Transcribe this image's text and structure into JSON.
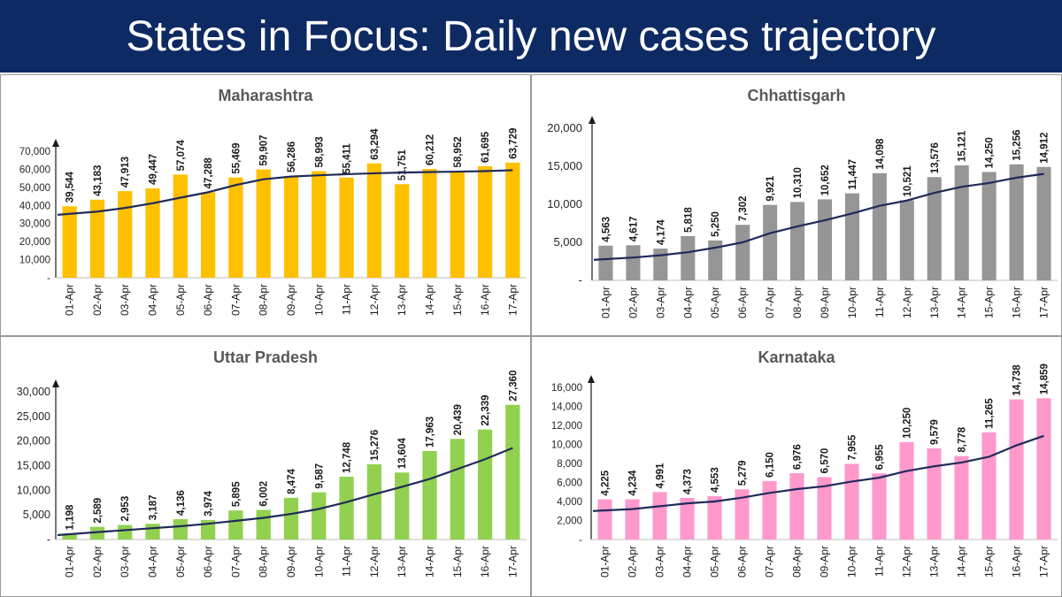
{
  "header": {
    "title": "States in Focus: Daily new cases trajectory"
  },
  "chart_data": [
    {
      "type": "bar",
      "title": "Maharashtra",
      "categories": [
        "01-Apr",
        "02-Apr",
        "03-Apr",
        "04-Apr",
        "05-Apr",
        "06-Apr",
        "07-Apr",
        "08-Apr",
        "09-Apr",
        "10-Apr",
        "11-Apr",
        "12-Apr",
        "13-Apr",
        "14-Apr",
        "15-Apr",
        "16-Apr",
        "17-Apr"
      ],
      "values": [
        39544,
        43183,
        47913,
        49447,
        57074,
        47288,
        55469,
        59907,
        56286,
        58993,
        55411,
        63294,
        51751,
        60212,
        58952,
        61695,
        63729
      ],
      "value_labels": [
        "39,544",
        "43,183",
        "47,913",
        "49,447",
        "57,074",
        "47,288",
        "55,469",
        "59,907",
        "56,286",
        "58,993",
        "55,411",
        "63,294",
        "51,751",
        "60,212",
        "58,952",
        "61,695",
        "63,729"
      ],
      "trend": [
        34800,
        36600,
        38600,
        41200,
        44300,
        47300,
        51300,
        54500,
        56000,
        56700,
        57300,
        57800,
        58200,
        58500,
        58700,
        59000,
        59500
      ],
      "ylim": [
        0,
        70000
      ],
      "yticks": [
        0,
        10000,
        20000,
        30000,
        40000,
        50000,
        60000,
        70000
      ],
      "ytick_labels": [
        "-",
        "10,000",
        "20,000",
        "30,000",
        "40,000",
        "50,000",
        "60,000",
        "70,000"
      ],
      "color": "#ffc000",
      "trend_color": "#1f2a5a"
    },
    {
      "type": "bar",
      "title": "Chhattisgarh",
      "categories": [
        "01-Apr",
        "02-Apr",
        "03-Apr",
        "04-Apr",
        "05-Apr",
        "06-Apr",
        "07-Apr",
        "08-Apr",
        "09-Apr",
        "10-Apr",
        "11-Apr",
        "12-Apr",
        "13-Apr",
        "14-Apr",
        "15-Apr",
        "16-Apr",
        "17-Apr"
      ],
      "values": [
        4563,
        4617,
        4174,
        5818,
        5250,
        7302,
        9921,
        10310,
        10652,
        11447,
        14098,
        10521,
        13576,
        15121,
        14250,
        15256,
        14912
      ],
      "value_labels": [
        "4,563",
        "4,617",
        "4,174",
        "5,818",
        "5,250",
        "7,302",
        "9,921",
        "10,310",
        "10,652",
        "11,447",
        "14,098",
        "10,521",
        "13,576",
        "15,121",
        "14,250",
        "15,256",
        "14,912"
      ],
      "trend": [
        2700,
        3000,
        3300,
        3700,
        4300,
        5000,
        6200,
        7100,
        7900,
        8800,
        9800,
        10500,
        11500,
        12300,
        12800,
        13500,
        14000
      ],
      "ylim": [
        0,
        20000
      ],
      "yticks": [
        0,
        5000,
        10000,
        15000,
        20000
      ],
      "ytick_labels": [
        "-",
        "5,000",
        "10,000",
        "15,000",
        "20,000"
      ],
      "color": "#969696",
      "trend_color": "#1f2a5a"
    },
    {
      "type": "bar",
      "title": "Uttar Pradesh",
      "categories": [
        "01-Apr",
        "02-Apr",
        "03-Apr",
        "04-Apr",
        "05-Apr",
        "06-Apr",
        "07-Apr",
        "08-Apr",
        "09-Apr",
        "10-Apr",
        "11-Apr",
        "12-Apr",
        "13-Apr",
        "14-Apr",
        "15-Apr",
        "16-Apr",
        "17-Apr"
      ],
      "values": [
        1198,
        2589,
        2953,
        3187,
        4136,
        3974,
        5895,
        6002,
        8474,
        9587,
        12748,
        15276,
        13604,
        17963,
        20439,
        22339,
        27360
      ],
      "value_labels": [
        "1,198",
        "2,589",
        "2,953",
        "3,187",
        "4,136",
        "3,974",
        "5,895",
        "6,002",
        "8,474",
        "9,587",
        "12,748",
        "15,276",
        "13,604",
        "17,963",
        "20,439",
        "22,339",
        "27,360"
      ],
      "trend": [
        900,
        1500,
        1900,
        2300,
        2700,
        3200,
        3800,
        4400,
        5200,
        6200,
        7600,
        9200,
        10700,
        12300,
        14300,
        16300,
        18600
      ],
      "ylim": [
        0,
        30000
      ],
      "yticks": [
        0,
        5000,
        10000,
        15000,
        20000,
        25000,
        30000
      ],
      "ytick_labels": [
        "-",
        "5,000",
        "10,000",
        "15,000",
        "20,000",
        "25,000",
        "30,000"
      ],
      "color": "#92d050",
      "trend_color": "#1f2a5a"
    },
    {
      "type": "bar",
      "title": "Karnataka",
      "categories": [
        "01-Apr",
        "02-Apr",
        "03-Apr",
        "04-Apr",
        "05-Apr",
        "06-Apr",
        "07-Apr",
        "08-Apr",
        "09-Apr",
        "10-Apr",
        "11-Apr",
        "12-Apr",
        "13-Apr",
        "14-Apr",
        "15-Apr",
        "16-Apr",
        "17-Apr"
      ],
      "values": [
        4225,
        4234,
        4991,
        4373,
        4553,
        5279,
        6150,
        6976,
        6570,
        7955,
        6955,
        10250,
        9579,
        8778,
        11265,
        14738,
        14859
      ],
      "value_labels": [
        "4,225",
        "4,234",
        "4,991",
        "4,373",
        "4,553",
        "5,279",
        "6,150",
        "6,976",
        "6,570",
        "7,955",
        "6,955",
        "10,250",
        "9,579",
        "8,778",
        "11,265",
        "14,738",
        "14,859"
      ],
      "trend": [
        3000,
        3200,
        3500,
        3800,
        4000,
        4400,
        4900,
        5300,
        5600,
        6100,
        6500,
        7200,
        7700,
        8100,
        8700,
        9900,
        10900
      ],
      "ylim": [
        0,
        16000
      ],
      "yticks": [
        0,
        2000,
        4000,
        6000,
        8000,
        10000,
        12000,
        14000,
        16000
      ],
      "ytick_labels": [
        "-",
        "2,000",
        "4,000",
        "6,000",
        "8,000",
        "10,000",
        "12,000",
        "14,000",
        "16,000"
      ],
      "color": "#ff99cc",
      "trend_color": "#1f2a5a"
    }
  ]
}
